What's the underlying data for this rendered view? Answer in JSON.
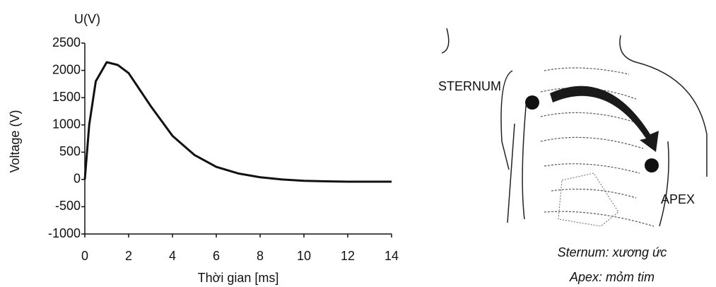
{
  "chart_data": {
    "type": "line",
    "y_unit_label": "U(V)",
    "ylabel": "Voltage (V)",
    "xlabel": "Thời gian [ms]",
    "x": [
      0,
      0.2,
      0.5,
      1,
      1.5,
      2,
      3,
      4,
      5,
      6,
      7,
      8,
      9,
      10,
      11,
      12,
      13,
      14
    ],
    "series": [
      {
        "color": "#111111",
        "values": [
          0,
          1000,
          1800,
          2150,
          2100,
          1950,
          1350,
          800,
          450,
          230,
          110,
          40,
          0,
          -25,
          -35,
          -40,
          -40,
          -40
        ]
      }
    ],
    "xlim": [
      0,
      14
    ],
    "xticks": [
      0,
      2,
      4,
      6,
      8,
      10,
      12,
      14
    ],
    "ylim": [
      -1000,
      2500
    ],
    "yticks": [
      -1000,
      -500,
      0,
      500,
      1000,
      1500,
      2000,
      2500
    ],
    "grid": false
  },
  "diagram": {
    "labels": [
      "STERNUM",
      "APEX"
    ],
    "captions": [
      "Sternum: xương ức",
      "Apex: mỏm tim"
    ]
  }
}
